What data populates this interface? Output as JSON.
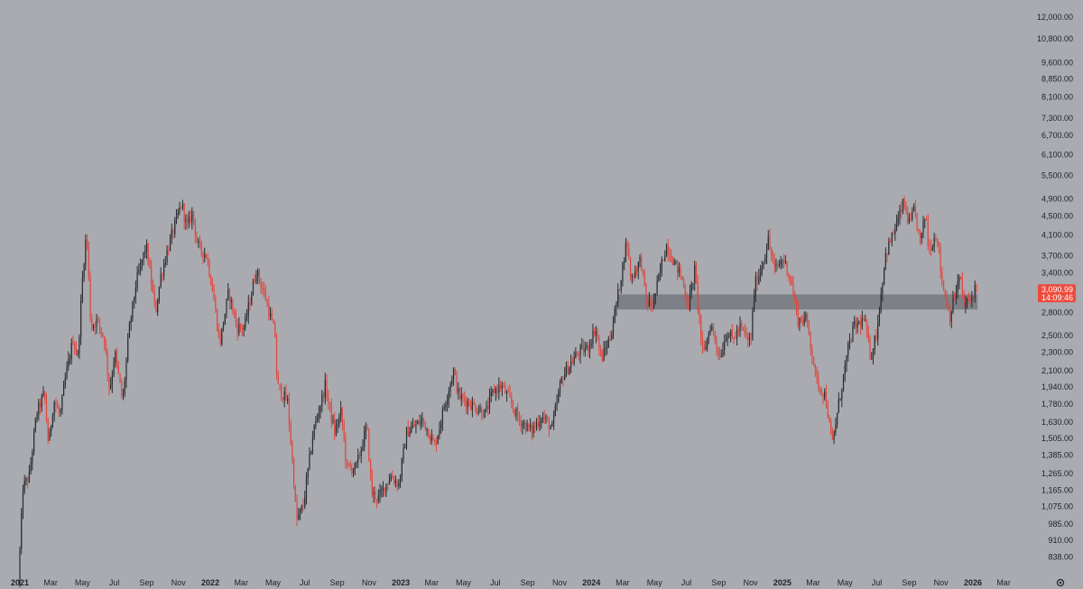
{
  "theme": {
    "background": "#a9abb0",
    "bullish_color": "#2b2d31",
    "bearish_color": "#e0473f",
    "zone_color": "#6f7278",
    "badge_color": "#ec4b3c"
  },
  "price_badge": {
    "price": "3,090.99",
    "countdown": "14:09:46"
  },
  "zone": {
    "from_date": "2024-02-20",
    "to_date": "2026-01-10",
    "low": 2840,
    "high": 3060
  },
  "chart_data": {
    "type": "candlestick",
    "y_scale": "log",
    "ylim": [
      800,
      12500
    ],
    "xlim": [
      "2021-01-01",
      "2026-04-01"
    ],
    "yticks": [
      {
        "value": 838,
        "label": "838.00"
      },
      {
        "value": 910,
        "label": "910.00"
      },
      {
        "value": 985,
        "label": "985.00"
      },
      {
        "value": 1075,
        "label": "1,075.00"
      },
      {
        "value": 1165,
        "label": "1,165.00"
      },
      {
        "value": 1265,
        "label": "1,265.00"
      },
      {
        "value": 1385,
        "label": "1,385.00"
      },
      {
        "value": 1505,
        "label": "1,505.00"
      },
      {
        "value": 1630,
        "label": "1,630.00"
      },
      {
        "value": 1780,
        "label": "1,780.00"
      },
      {
        "value": 1940,
        "label": "1,940.00"
      },
      {
        "value": 2100,
        "label": "2,100.00"
      },
      {
        "value": 2300,
        "label": "2,300.00"
      },
      {
        "value": 2500,
        "label": "2,500.00"
      },
      {
        "value": 2800,
        "label": "2,800.00"
      },
      {
        "value": 3400,
        "label": "3,400.00"
      },
      {
        "value": 3700,
        "label": "3,700.00"
      },
      {
        "value": 4100,
        "label": "4,100.00"
      },
      {
        "value": 4500,
        "label": "4,500.00"
      },
      {
        "value": 4900,
        "label": "4,900.00"
      },
      {
        "value": 5500,
        "label": "5,500.00"
      },
      {
        "value": 6100,
        "label": "6,100.00"
      },
      {
        "value": 6700,
        "label": "6,700.00"
      },
      {
        "value": 7300,
        "label": "7,300.00"
      },
      {
        "value": 8100,
        "label": "8,100.00"
      },
      {
        "value": 8850,
        "label": "8,850.00"
      },
      {
        "value": 9600,
        "label": "9,600.00"
      },
      {
        "value": 10800,
        "label": "10,800.00"
      },
      {
        "value": 12000,
        "label": "12,000.00"
      }
    ],
    "xticks": [
      {
        "date": "2021-01-01",
        "label": "2021",
        "year": true
      },
      {
        "date": "2021-03-01",
        "label": "Mar",
        "year": false
      },
      {
        "date": "2021-05-01",
        "label": "May",
        "year": false
      },
      {
        "date": "2021-07-01",
        "label": "Jul",
        "year": false
      },
      {
        "date": "2021-09-01",
        "label": "Sep",
        "year": false
      },
      {
        "date": "2021-11-01",
        "label": "Nov",
        "year": false
      },
      {
        "date": "2022-01-01",
        "label": "2022",
        "year": true
      },
      {
        "date": "2022-03-01",
        "label": "Mar",
        "year": false
      },
      {
        "date": "2022-05-01",
        "label": "May",
        "year": false
      },
      {
        "date": "2022-07-01",
        "label": "Jul",
        "year": false
      },
      {
        "date": "2022-09-01",
        "label": "Sep",
        "year": false
      },
      {
        "date": "2022-11-01",
        "label": "Nov",
        "year": false
      },
      {
        "date": "2023-01-01",
        "label": "2023",
        "year": true
      },
      {
        "date": "2023-03-01",
        "label": "Mar",
        "year": false
      },
      {
        "date": "2023-05-01",
        "label": "May",
        "year": false
      },
      {
        "date": "2023-07-01",
        "label": "Jul",
        "year": false
      },
      {
        "date": "2023-09-01",
        "label": "Sep",
        "year": false
      },
      {
        "date": "2023-11-01",
        "label": "Nov",
        "year": false
      },
      {
        "date": "2024-01-01",
        "label": "2024",
        "year": true
      },
      {
        "date": "2024-03-01",
        "label": "Mar",
        "year": false
      },
      {
        "date": "2024-05-01",
        "label": "May",
        "year": false
      },
      {
        "date": "2024-07-01",
        "label": "Jul",
        "year": false
      },
      {
        "date": "2024-09-01",
        "label": "Sep",
        "year": false
      },
      {
        "date": "2024-11-01",
        "label": "Nov",
        "year": false
      },
      {
        "date": "2025-01-01",
        "label": "2025",
        "year": true
      },
      {
        "date": "2025-03-01",
        "label": "Mar",
        "year": false
      },
      {
        "date": "2025-05-01",
        "label": "May",
        "year": false
      },
      {
        "date": "2025-07-01",
        "label": "Jul",
        "year": false
      },
      {
        "date": "2025-09-01",
        "label": "Sep",
        "year": false
      },
      {
        "date": "2025-11-01",
        "label": "Nov",
        "year": false
      },
      {
        "date": "2026-01-01",
        "label": "2026",
        "year": true
      },
      {
        "date": "2026-03-01",
        "label": "Mar",
        "year": false
      }
    ],
    "price_path": [
      [
        "2021-01-01",
        740
      ],
      [
        "2021-01-10",
        1180
      ],
      [
        "2021-01-22",
        1250
      ],
      [
        "2021-02-05",
        1700
      ],
      [
        "2021-02-20",
        1880
      ],
      [
        "2021-02-28",
        1450
      ],
      [
        "2021-03-10",
        1820
      ],
      [
        "2021-03-22",
        1680
      ],
      [
        "2021-04-02",
        2050
      ],
      [
        "2021-04-16",
        2450
      ],
      [
        "2021-04-25",
        2250
      ],
      [
        "2021-05-05",
        3450
      ],
      [
        "2021-05-12",
        4200
      ],
      [
        "2021-05-20",
        2600
      ],
      [
        "2021-06-01",
        2700
      ],
      [
        "2021-06-15",
        2450
      ],
      [
        "2021-06-25",
        1900
      ],
      [
        "2021-07-05",
        2300
      ],
      [
        "2021-07-20",
        1800
      ],
      [
        "2021-08-01",
        2550
      ],
      [
        "2021-08-15",
        3250
      ],
      [
        "2021-09-03",
        3900
      ],
      [
        "2021-09-12",
        3300
      ],
      [
        "2021-09-21",
        2800
      ],
      [
        "2021-10-01",
        3350
      ],
      [
        "2021-10-15",
        3850
      ],
      [
        "2021-10-28",
        4300
      ],
      [
        "2021-11-10",
        4800
      ],
      [
        "2021-11-20",
        4250
      ],
      [
        "2021-12-01",
        4600
      ],
      [
        "2021-12-10",
        3900
      ],
      [
        "2021-12-28",
        3700
      ],
      [
        "2022-01-08",
        3150
      ],
      [
        "2022-01-22",
        2400
      ],
      [
        "2022-02-08",
        3100
      ],
      [
        "2022-02-24",
        2600
      ],
      [
        "2022-03-10",
        2600
      ],
      [
        "2022-04-02",
        3450
      ],
      [
        "2022-04-20",
        3000
      ],
      [
        "2022-05-08",
        2500
      ],
      [
        "2022-05-12",
        1950
      ],
      [
        "2022-06-01",
        1800
      ],
      [
        "2022-06-13",
        1220
      ],
      [
        "2022-06-18",
        1000
      ],
      [
        "2022-07-01",
        1080
      ],
      [
        "2022-07-20",
        1550
      ],
      [
        "2022-08-12",
        1950
      ],
      [
        "2022-08-30",
        1550
      ],
      [
        "2022-09-12",
        1720
      ],
      [
        "2022-09-22",
        1300
      ],
      [
        "2022-10-10",
        1300
      ],
      [
        "2022-10-31",
        1600
      ],
      [
        "2022-11-09",
        1150
      ],
      [
        "2022-11-22",
        1120
      ],
      [
        "2022-12-15",
        1250
      ],
      [
        "2022-12-31",
        1200
      ],
      [
        "2023-01-15",
        1550
      ],
      [
        "2023-02-15",
        1650
      ],
      [
        "2023-03-10",
        1450
      ],
      [
        "2023-03-30",
        1800
      ],
      [
        "2023-04-15",
        2100
      ],
      [
        "2023-04-25",
        1850
      ],
      [
        "2023-05-12",
        1800
      ],
      [
        "2023-06-15",
        1700
      ],
      [
        "2023-06-30",
        1900
      ],
      [
        "2023-07-15",
        1950
      ],
      [
        "2023-07-28",
        1850
      ],
      [
        "2023-08-18",
        1650
      ],
      [
        "2023-09-11",
        1560
      ],
      [
        "2023-10-01",
        1680
      ],
      [
        "2023-10-21",
        1580
      ],
      [
        "2023-11-01",
        1850
      ],
      [
        "2023-11-10",
        2050
      ],
      [
        "2023-12-10",
        2300
      ],
      [
        "2023-12-28",
        2350
      ],
      [
        "2024-01-12",
        2600
      ],
      [
        "2024-01-23",
        2220
      ],
      [
        "2024-02-10",
        2500
      ],
      [
        "2024-02-25",
        3100
      ],
      [
        "2024-03-12",
        4000
      ],
      [
        "2024-03-20",
        3300
      ],
      [
        "2024-04-08",
        3650
      ],
      [
        "2024-04-18",
        2950
      ],
      [
        "2024-05-01",
        2900
      ],
      [
        "2024-05-20",
        3650
      ],
      [
        "2024-05-27",
        3900
      ],
      [
        "2024-06-10",
        3600
      ],
      [
        "2024-06-24",
        3350
      ],
      [
        "2024-07-08",
        2900
      ],
      [
        "2024-07-20",
        3450
      ],
      [
        "2024-08-05",
        2250
      ],
      [
        "2024-08-20",
        2650
      ],
      [
        "2024-09-06",
        2250
      ],
      [
        "2024-09-20",
        2550
      ],
      [
        "2024-10-01",
        2450
      ],
      [
        "2024-10-15",
        2600
      ],
      [
        "2024-11-04",
        2400
      ],
      [
        "2024-11-12",
        3200
      ],
      [
        "2024-11-25",
        3500
      ],
      [
        "2024-12-08",
        4000
      ],
      [
        "2024-12-20",
        3450
      ],
      [
        "2025-01-06",
        3650
      ],
      [
        "2025-01-20",
        3300
      ],
      [
        "2025-02-03",
        2700
      ],
      [
        "2025-02-20",
        2700
      ],
      [
        "2025-03-10",
        2000
      ],
      [
        "2025-03-28",
        1850
      ],
      [
        "2025-04-09",
        1450
      ],
      [
        "2025-04-22",
        1780
      ],
      [
        "2025-05-09",
        2300
      ],
      [
        "2025-05-20",
        2600
      ],
      [
        "2025-06-10",
        2700
      ],
      [
        "2025-06-22",
        2250
      ],
      [
        "2025-07-04",
        2550
      ],
      [
        "2025-07-20",
        3700
      ],
      [
        "2025-08-10",
        4300
      ],
      [
        "2025-08-24",
        4800
      ],
      [
        "2025-09-05",
        4300
      ],
      [
        "2025-09-14",
        4650
      ],
      [
        "2025-09-25",
        3950
      ],
      [
        "2025-10-06",
        4600
      ],
      [
        "2025-10-11",
        3800
      ],
      [
        "2025-10-27",
        4150
      ],
      [
        "2025-11-05",
        3300
      ],
      [
        "2025-11-21",
        2750
      ],
      [
        "2025-12-01",
        3050
      ],
      [
        "2025-12-10",
        3350
      ],
      [
        "2025-12-18",
        2900
      ],
      [
        "2025-12-31",
        2980
      ],
      [
        "2026-01-08",
        3150
      ],
      [
        "2026-01-10",
        3090
      ]
    ]
  }
}
